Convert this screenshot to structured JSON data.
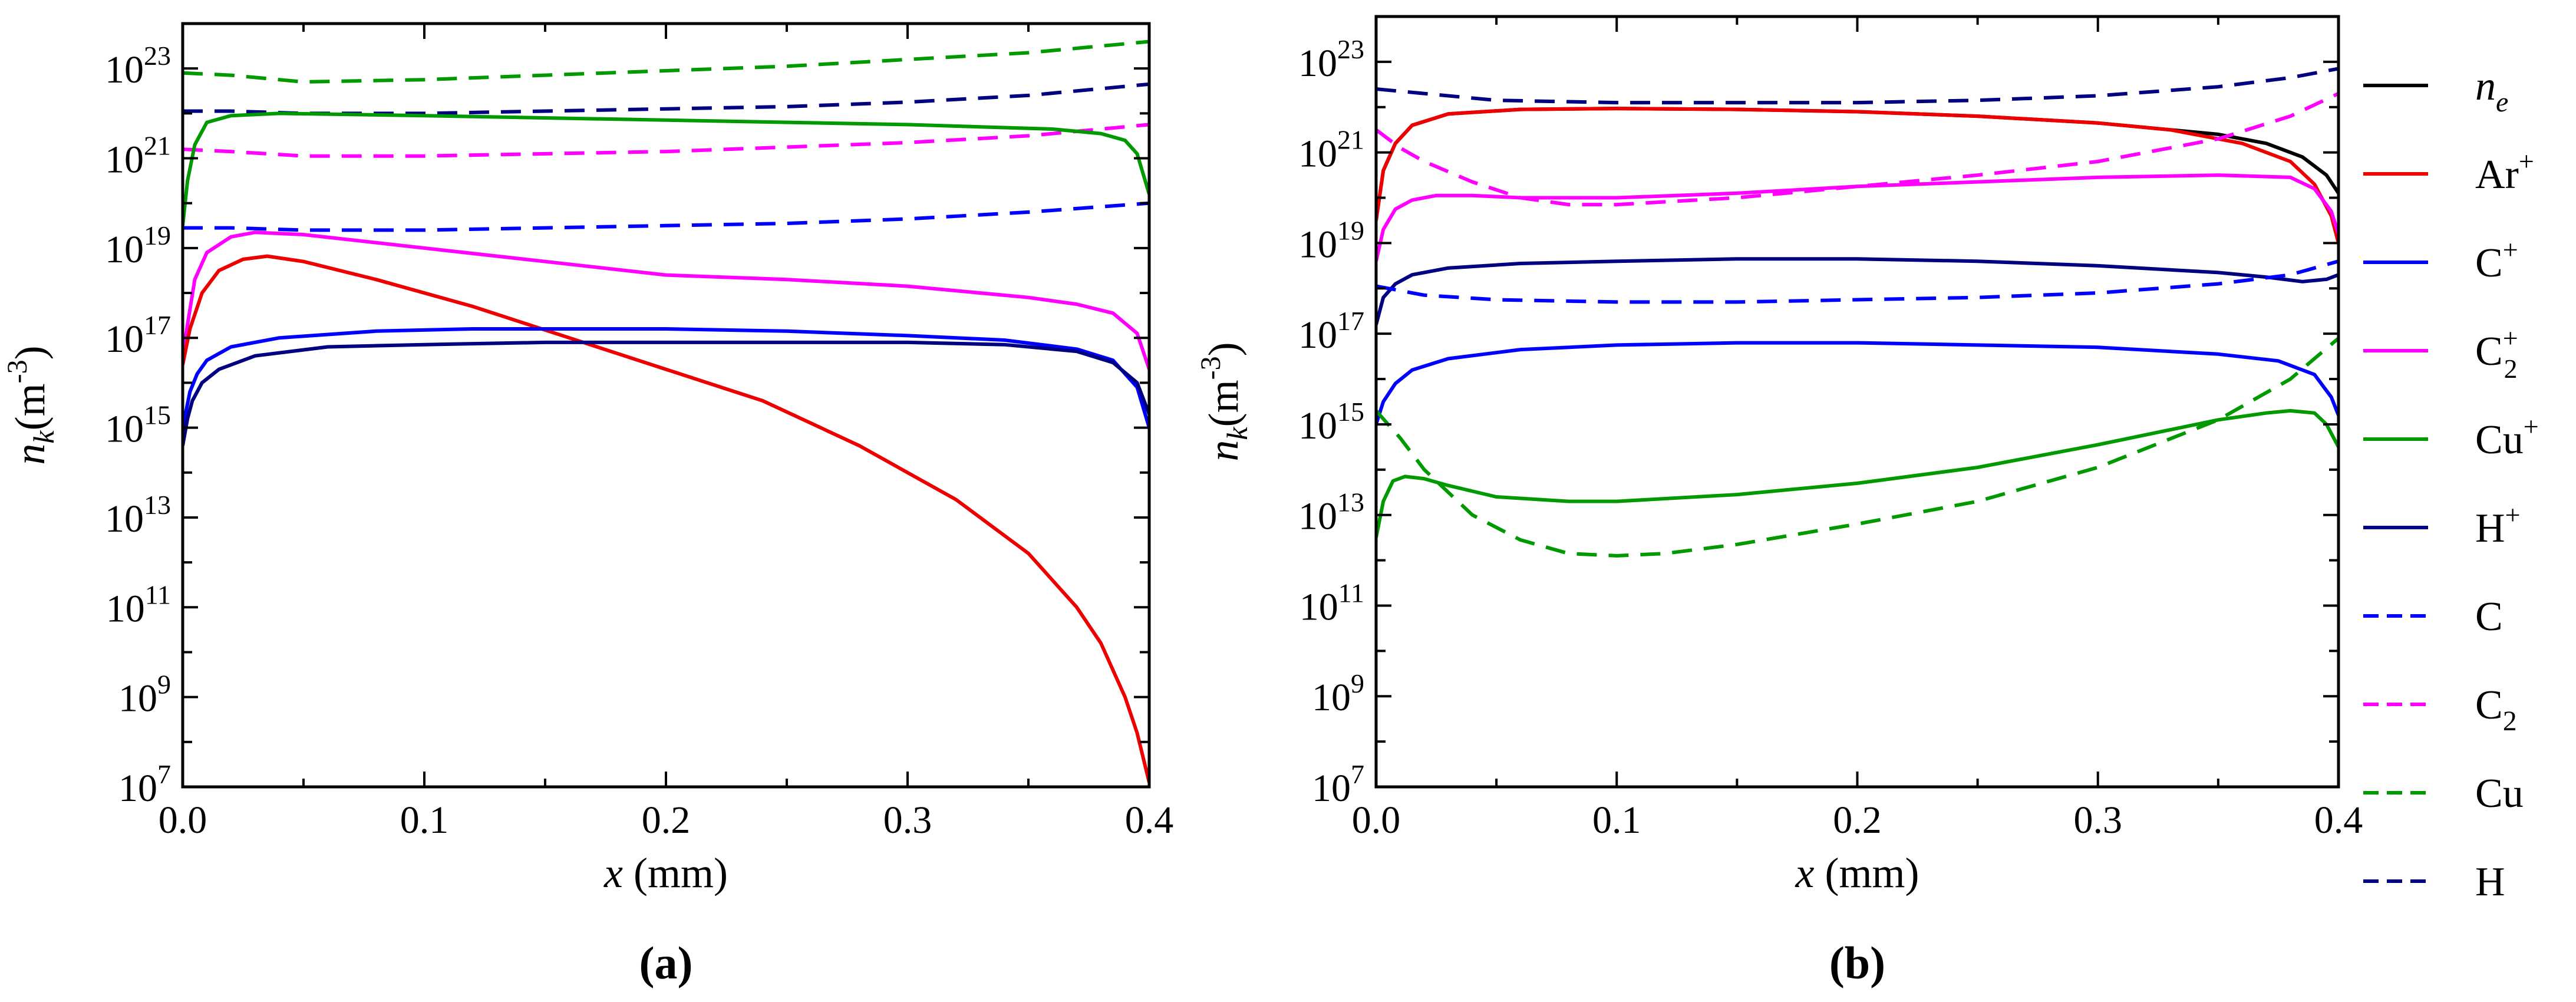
{
  "chart_data": [
    {
      "panel": "a",
      "panel_label": "(a)",
      "type": "line",
      "xlabel": "x (mm)",
      "ylabel": "n_k(m^-3)",
      "xlim": [
        0.0,
        0.4
      ],
      "ylim": [
        10000000.0,
        1e+24
      ],
      "yscale": "log",
      "xticks": [
        "0.0",
        "0.1",
        "0.2",
        "0.3",
        "0.4"
      ],
      "yticks": [
        {
          "base": "10",
          "exp": "7",
          "value": 7
        },
        {
          "base": "10",
          "exp": "9",
          "value": 9
        },
        {
          "base": "10",
          "exp": "11",
          "value": 11
        },
        {
          "base": "10",
          "exp": "13",
          "value": 13
        },
        {
          "base": "10",
          "exp": "15",
          "value": 15
        },
        {
          "base": "10",
          "exp": "17",
          "value": 17
        },
        {
          "base": "10",
          "exp": "19",
          "value": 19
        },
        {
          "base": "10",
          "exp": "21",
          "value": 21
        },
        {
          "base": "10",
          "exp": "23",
          "value": 23
        }
      ],
      "series": [
        {
          "name": "Cu",
          "color": "#009900",
          "dash": true,
          "x": [
            0,
            0.02,
            0.05,
            0.1,
            0.15,
            0.2,
            0.25,
            0.3,
            0.35,
            0.4
          ],
          "log10_y": [
            22.9,
            22.85,
            22.7,
            22.75,
            22.85,
            22.95,
            23.05,
            23.2,
            23.35,
            23.6
          ]
        },
        {
          "name": "H",
          "color": "#000080",
          "dash": true,
          "x": [
            0,
            0.02,
            0.05,
            0.1,
            0.15,
            0.2,
            0.25,
            0.3,
            0.35,
            0.4
          ],
          "log10_y": [
            22.05,
            22.05,
            22.0,
            22.0,
            22.05,
            22.1,
            22.15,
            22.25,
            22.4,
            22.65
          ]
        },
        {
          "name": "C2",
          "color": "#ff00ff",
          "dash": true,
          "x": [
            0,
            0.02,
            0.05,
            0.1,
            0.15,
            0.2,
            0.25,
            0.3,
            0.35,
            0.4
          ],
          "log10_y": [
            21.2,
            21.15,
            21.05,
            21.05,
            21.1,
            21.15,
            21.25,
            21.35,
            21.5,
            21.75
          ]
        },
        {
          "name": "C",
          "color": "#0000ff",
          "dash": true,
          "x": [
            0,
            0.02,
            0.05,
            0.1,
            0.15,
            0.2,
            0.25,
            0.3,
            0.35,
            0.4
          ],
          "log10_y": [
            19.45,
            19.45,
            19.4,
            19.4,
            19.45,
            19.5,
            19.55,
            19.65,
            19.8,
            20.0
          ]
        },
        {
          "name": "Cu+",
          "color": "#009900",
          "dash": false,
          "x": [
            0,
            0.002,
            0.005,
            0.01,
            0.02,
            0.04,
            0.1,
            0.2,
            0.3,
            0.36,
            0.38,
            0.39,
            0.395,
            0.4
          ],
          "log10_y": [
            19.5,
            20.5,
            21.3,
            21.8,
            21.95,
            22.0,
            21.95,
            21.85,
            21.75,
            21.65,
            21.55,
            21.4,
            21.1,
            20.2
          ]
        },
        {
          "name": "C2+",
          "color": "#ff00ff",
          "dash": false,
          "x": [
            0,
            0.002,
            0.005,
            0.01,
            0.02,
            0.03,
            0.05,
            0.1,
            0.15,
            0.2,
            0.25,
            0.3,
            0.35,
            0.37,
            0.385,
            0.395,
            0.4
          ],
          "log10_y": [
            16.6,
            17.3,
            18.3,
            18.9,
            19.25,
            19.35,
            19.3,
            19.0,
            18.7,
            18.4,
            18.3,
            18.15,
            17.9,
            17.75,
            17.55,
            17.1,
            16.3
          ]
        },
        {
          "name": "Ar+",
          "color": "#ee0000",
          "dash": false,
          "x": [
            0,
            0.003,
            0.008,
            0.015,
            0.025,
            0.035,
            0.05,
            0.08,
            0.12,
            0.16,
            0.2,
            0.24,
            0.28,
            0.32,
            0.35,
            0.37,
            0.38,
            0.39,
            0.395,
            0.4
          ],
          "log10_y": [
            16.4,
            17.2,
            18.0,
            18.5,
            18.75,
            18.82,
            18.7,
            18.3,
            17.7,
            17.0,
            16.3,
            15.6,
            14.6,
            13.4,
            12.2,
            11.0,
            10.2,
            9.0,
            8.2,
            7.1
          ]
        },
        {
          "name": "C+",
          "color": "#0000ff",
          "dash": false,
          "x": [
            0,
            0.003,
            0.006,
            0.01,
            0.02,
            0.04,
            0.08,
            0.12,
            0.16,
            0.2,
            0.25,
            0.3,
            0.34,
            0.37,
            0.385,
            0.395,
            0.4
          ],
          "log10_y": [
            15.0,
            15.8,
            16.2,
            16.5,
            16.8,
            17.0,
            17.15,
            17.2,
            17.2,
            17.2,
            17.15,
            17.05,
            16.95,
            16.75,
            16.5,
            15.9,
            15.0
          ]
        },
        {
          "name": "H+",
          "color": "#000080",
          "dash": false,
          "x": [
            0,
            0.002,
            0.004,
            0.008,
            0.015,
            0.03,
            0.06,
            0.1,
            0.15,
            0.2,
            0.25,
            0.3,
            0.34,
            0.37,
            0.385,
            0.395,
            0.4
          ],
          "log10_y": [
            14.6,
            15.2,
            15.6,
            16.0,
            16.3,
            16.6,
            16.8,
            16.85,
            16.9,
            16.9,
            16.9,
            16.9,
            16.85,
            16.7,
            16.45,
            16.0,
            15.3
          ]
        }
      ]
    },
    {
      "panel": "b",
      "panel_label": "(b)",
      "type": "line",
      "xlabel": "x (mm)",
      "ylabel": "n_k(m^-3)",
      "xlim": [
        0.0,
        0.4
      ],
      "ylim": [
        10000000.0,
        1e+24
      ],
      "yscale": "log",
      "xticks": [
        "0.0",
        "0.1",
        "0.2",
        "0.3",
        "0.4"
      ],
      "yticks": [
        {
          "base": "10",
          "exp": "7",
          "value": 7
        },
        {
          "base": "10",
          "exp": "9",
          "value": 9
        },
        {
          "base": "10",
          "exp": "11",
          "value": 11
        },
        {
          "base": "10",
          "exp": "13",
          "value": 13
        },
        {
          "base": "10",
          "exp": "15",
          "value": 15
        },
        {
          "base": "10",
          "exp": "17",
          "value": 17
        },
        {
          "base": "10",
          "exp": "19",
          "value": 19
        },
        {
          "base": "10",
          "exp": "21",
          "value": 21
        },
        {
          "base": "10",
          "exp": "23",
          "value": 23
        }
      ],
      "series": [
        {
          "name": "ne",
          "color": "#000000",
          "dash": false,
          "x": [
            0,
            0.003,
            0.008,
            0.015,
            0.03,
            0.06,
            0.1,
            0.15,
            0.2,
            0.25,
            0.3,
            0.35,
            0.37,
            0.385,
            0.395,
            0.4
          ],
          "log10_y": [
            19.5,
            20.6,
            21.2,
            21.6,
            21.85,
            21.95,
            21.97,
            21.95,
            21.9,
            21.8,
            21.65,
            21.4,
            21.2,
            20.9,
            20.5,
            20.1
          ]
        },
        {
          "name": "Ar+",
          "color": "#ee0000",
          "dash": false,
          "x": [
            0,
            0.003,
            0.008,
            0.015,
            0.03,
            0.06,
            0.1,
            0.15,
            0.2,
            0.25,
            0.3,
            0.33,
            0.36,
            0.38,
            0.39,
            0.397,
            0.4
          ],
          "log10_y": [
            19.5,
            20.6,
            21.2,
            21.6,
            21.85,
            21.95,
            21.97,
            21.95,
            21.9,
            21.8,
            21.65,
            21.5,
            21.2,
            20.8,
            20.3,
            19.6,
            19.0
          ]
        },
        {
          "name": "C+",
          "color": "#0000ff",
          "dash": false,
          "x": [
            0,
            0.003,
            0.008,
            0.015,
            0.03,
            0.06,
            0.1,
            0.15,
            0.2,
            0.25,
            0.3,
            0.35,
            0.375,
            0.39,
            0.397,
            0.4
          ],
          "log10_y": [
            15.0,
            15.5,
            15.9,
            16.2,
            16.45,
            16.65,
            16.75,
            16.8,
            16.8,
            16.75,
            16.7,
            16.55,
            16.4,
            16.1,
            15.6,
            15.2
          ]
        },
        {
          "name": "C2+",
          "color": "#ff00ff",
          "dash": false,
          "x": [
            0,
            0.003,
            0.008,
            0.015,
            0.025,
            0.04,
            0.06,
            0.1,
            0.15,
            0.2,
            0.25,
            0.3,
            0.35,
            0.38,
            0.39,
            0.397,
            0.4
          ],
          "log10_y": [
            18.6,
            19.3,
            19.75,
            19.95,
            20.05,
            20.05,
            20.0,
            20.0,
            20.1,
            20.25,
            20.35,
            20.45,
            20.5,
            20.45,
            20.2,
            19.7,
            19.2
          ]
        },
        {
          "name": "Cu+",
          "color": "#009900",
          "dash": false,
          "x": [
            0,
            0.003,
            0.007,
            0.012,
            0.02,
            0.03,
            0.05,
            0.08,
            0.1,
            0.15,
            0.2,
            0.25,
            0.3,
            0.35,
            0.37,
            0.38,
            0.39,
            0.395,
            0.4
          ],
          "log10_y": [
            12.5,
            13.3,
            13.75,
            13.85,
            13.8,
            13.65,
            13.4,
            13.3,
            13.3,
            13.45,
            13.7,
            14.05,
            14.55,
            15.1,
            15.25,
            15.3,
            15.25,
            15.0,
            14.5
          ]
        },
        {
          "name": "H+",
          "color": "#000080",
          "dash": false,
          "x": [
            0,
            0.003,
            0.008,
            0.015,
            0.03,
            0.06,
            0.1,
            0.15,
            0.2,
            0.25,
            0.3,
            0.35,
            0.37,
            0.385,
            0.395,
            0.4
          ],
          "log10_y": [
            17.2,
            17.8,
            18.1,
            18.3,
            18.45,
            18.55,
            18.6,
            18.65,
            18.65,
            18.6,
            18.5,
            18.35,
            18.25,
            18.15,
            18.2,
            18.3
          ]
        },
        {
          "name": "C",
          "color": "#0000ff",
          "dash": true,
          "x": [
            0,
            0.02,
            0.05,
            0.1,
            0.15,
            0.2,
            0.25,
            0.3,
            0.35,
            0.38,
            0.4
          ],
          "log10_y": [
            18.05,
            17.85,
            17.75,
            17.7,
            17.7,
            17.75,
            17.8,
            17.9,
            18.1,
            18.3,
            18.6
          ]
        },
        {
          "name": "C2",
          "color": "#ff00ff",
          "dash": true,
          "x": [
            0,
            0.01,
            0.02,
            0.04,
            0.06,
            0.08,
            0.1,
            0.15,
            0.2,
            0.25,
            0.3,
            0.35,
            0.38,
            0.4
          ],
          "log10_y": [
            21.5,
            21.1,
            20.8,
            20.35,
            20.0,
            19.85,
            19.85,
            20.0,
            20.25,
            20.5,
            20.8,
            21.3,
            21.8,
            22.3
          ]
        },
        {
          "name": "Cu",
          "color": "#009900",
          "dash": true,
          "x": [
            0,
            0.01,
            0.02,
            0.04,
            0.06,
            0.08,
            0.1,
            0.12,
            0.15,
            0.2,
            0.25,
            0.3,
            0.35,
            0.38,
            0.4
          ],
          "log10_y": [
            15.3,
            14.7,
            14.0,
            13.0,
            12.45,
            12.15,
            12.1,
            12.15,
            12.35,
            12.8,
            13.3,
            14.05,
            15.1,
            16.0,
            16.9
          ]
        },
        {
          "name": "H",
          "color": "#000080",
          "dash": true,
          "x": [
            0,
            0.02,
            0.05,
            0.1,
            0.15,
            0.2,
            0.25,
            0.3,
            0.35,
            0.38,
            0.4
          ],
          "log10_y": [
            22.4,
            22.3,
            22.15,
            22.1,
            22.1,
            22.1,
            22.15,
            22.25,
            22.45,
            22.65,
            22.85
          ]
        }
      ]
    }
  ],
  "legend": [
    {
      "label": "n",
      "sub": "e",
      "sup": "",
      "italic": true,
      "color": "#000000",
      "dash": false
    },
    {
      "label": "Ar",
      "sub": "",
      "sup": "+",
      "italic": false,
      "color": "#ee0000",
      "dash": false
    },
    {
      "label": "C",
      "sub": "",
      "sup": "+",
      "italic": false,
      "color": "#0000ff",
      "dash": false
    },
    {
      "label": "C",
      "sub": "2",
      "sup": "+",
      "italic": false,
      "color": "#ff00ff",
      "dash": false
    },
    {
      "label": "Cu",
      "sub": "",
      "sup": "+",
      "italic": false,
      "color": "#009900",
      "dash": false
    },
    {
      "label": "H",
      "sub": "",
      "sup": "+",
      "italic": false,
      "color": "#000080",
      "dash": false
    },
    {
      "label": "C",
      "sub": "",
      "sup": "",
      "italic": false,
      "color": "#0000ff",
      "dash": true
    },
    {
      "label": "C",
      "sub": "2",
      "sup": "",
      "italic": false,
      "color": "#ff00ff",
      "dash": true
    },
    {
      "label": "Cu",
      "sub": "",
      "sup": "",
      "italic": false,
      "color": "#009900",
      "dash": true
    },
    {
      "label": "H",
      "sub": "",
      "sup": "",
      "italic": false,
      "color": "#000080",
      "dash": true
    }
  ]
}
